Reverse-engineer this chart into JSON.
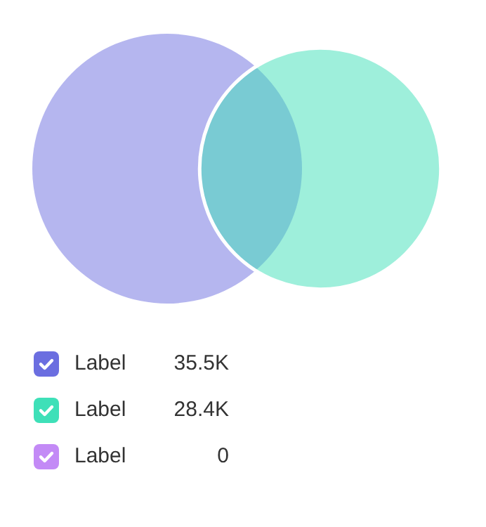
{
  "chart_data": {
    "type": "other",
    "categories": [
      "Label",
      "Label",
      "Label"
    ],
    "values": [
      35500,
      28400,
      0
    ],
    "value_labels": [
      "35.5K",
      "28.4K",
      "0"
    ],
    "colors": [
      "#6b6ee0",
      "#3ee0b8",
      "#c38af6"
    ]
  }
}
